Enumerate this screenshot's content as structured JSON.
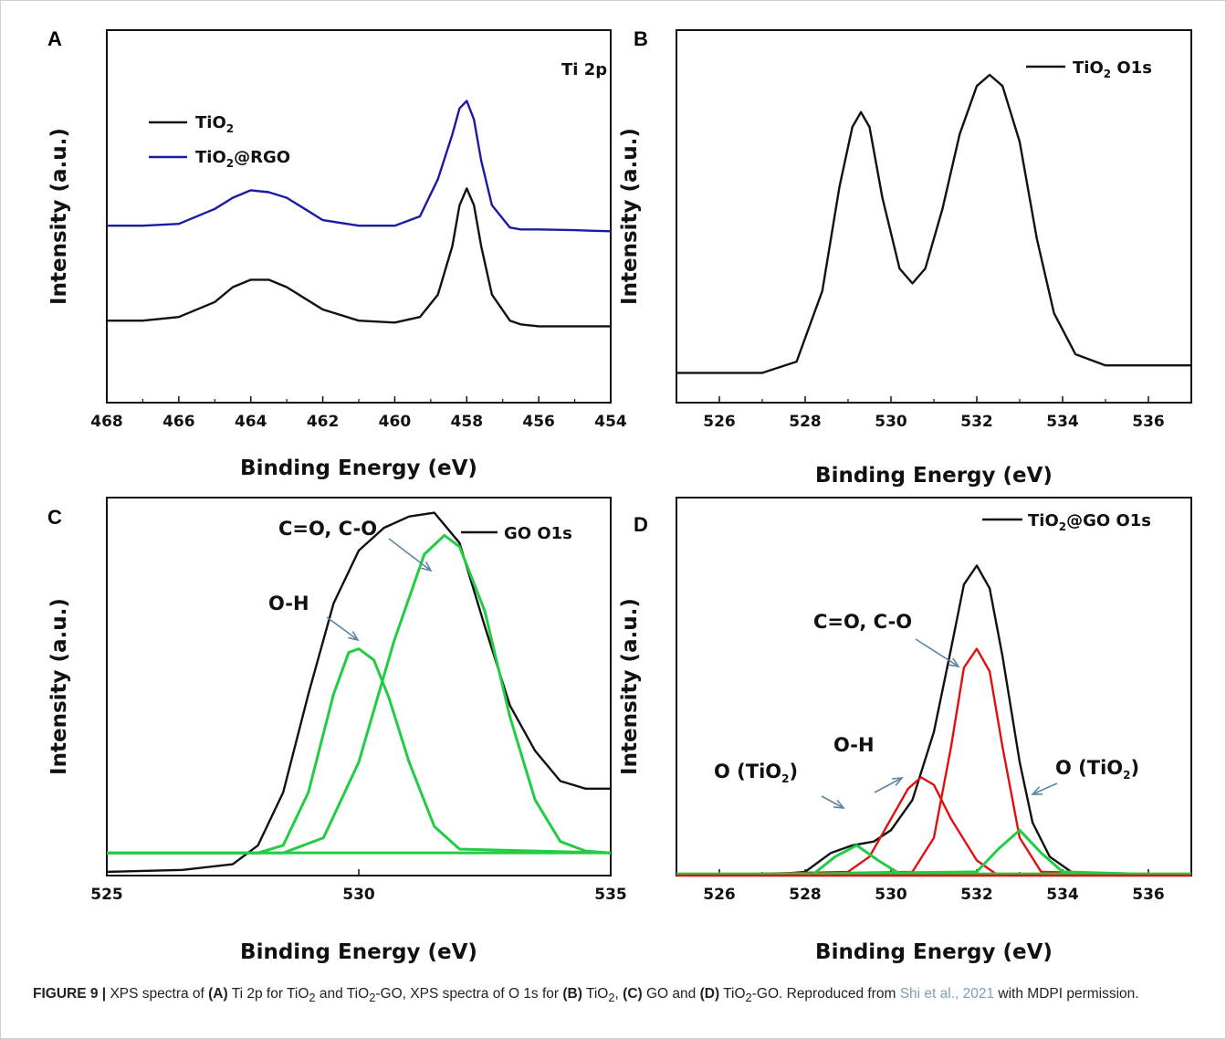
{
  "figure": {
    "caption": {
      "label": "FIGURE 9 |",
      "t1": " XPS spectra of ",
      "a": "(A)",
      "t2": " Ti 2p for TiO",
      "sub": "2",
      "t3": " and TiO",
      "t4": "-GO, XPS spectra of O 1s for ",
      "b": "(B)",
      "t5": " TiO",
      "t6": ", ",
      "c": "(C)",
      "t7": " GO and ",
      "d": "(D)",
      "t8": " TiO",
      "t9": "-GO. Reproduced from ",
      "cite": "Shi et al., 2021",
      "t10": " with MDPI permission."
    }
  },
  "chart_data": [
    {
      "id": "A",
      "type": "line",
      "panel_label": "A",
      "xlabel": "Binding Energy (eV)",
      "ylabel": "Intensity (a.u.)",
      "xlim": [
        468,
        454
      ],
      "x_reversed": true,
      "xticks": [
        468,
        466,
        464,
        462,
        460,
        458,
        456,
        454
      ],
      "ylim": [
        0,
        1
      ],
      "annotation": "Ti 2p",
      "legend_position": "top-left",
      "series": [
        {
          "name": "TiO2",
          "name_main": "TiO",
          "name_sub": "2",
          "name_rest": "",
          "color": "#111111",
          "x": [
            468,
            467,
            466,
            465,
            464.5,
            464,
            463.5,
            463,
            462.5,
            462,
            461,
            460,
            459.3,
            458.8,
            458.4,
            458.2,
            458,
            457.8,
            457.6,
            457.3,
            456.8,
            456.5,
            456,
            455,
            454
          ],
          "y": [
            0.22,
            0.22,
            0.23,
            0.27,
            0.31,
            0.33,
            0.33,
            0.31,
            0.28,
            0.25,
            0.22,
            0.215,
            0.23,
            0.29,
            0.42,
            0.53,
            0.575,
            0.53,
            0.42,
            0.29,
            0.22,
            0.21,
            0.205,
            0.205,
            0.205
          ]
        },
        {
          "name": "TiO2@RGO",
          "name_main": "TiO",
          "name_sub": "2",
          "name_rest": "@RGO",
          "color": "#1a1aa6",
          "x": [
            468,
            467,
            466,
            465,
            464.5,
            464,
            463.5,
            463,
            462.5,
            462,
            461,
            460,
            459.3,
            458.8,
            458.4,
            458.2,
            458,
            457.8,
            457.6,
            457.3,
            456.8,
            456.5,
            456,
            455,
            454
          ],
          "y": [
            0.475,
            0.475,
            0.48,
            0.52,
            0.55,
            0.57,
            0.565,
            0.55,
            0.52,
            0.49,
            0.475,
            0.475,
            0.5,
            0.6,
            0.72,
            0.79,
            0.81,
            0.76,
            0.65,
            0.53,
            0.47,
            0.465,
            0.465,
            0.463,
            0.46
          ]
        }
      ]
    },
    {
      "id": "B",
      "type": "line",
      "panel_label": "B",
      "xlabel": "Binding Energy (eV)",
      "ylabel": "Intensity (a.u.)",
      "xlim": [
        525,
        537
      ],
      "xticks": [
        526,
        528,
        530,
        532,
        534,
        536
      ],
      "ylim": [
        0,
        1
      ],
      "legend_position": "top-right",
      "series": [
        {
          "name": "TiO2 O1s",
          "name_main": "TiO",
          "name_sub": "2",
          "name_rest": "  O1s",
          "color": "#111111",
          "x": [
            525,
            526,
            527,
            527.8,
            528.4,
            528.8,
            529.1,
            529.3,
            529.5,
            529.8,
            530.2,
            530.5,
            530.8,
            531.2,
            531.6,
            532,
            532.3,
            532.6,
            533,
            533.4,
            533.8,
            534.3,
            535,
            536,
            537
          ],
          "y": [
            0.08,
            0.08,
            0.08,
            0.11,
            0.3,
            0.58,
            0.74,
            0.78,
            0.74,
            0.55,
            0.36,
            0.32,
            0.36,
            0.52,
            0.72,
            0.85,
            0.88,
            0.85,
            0.7,
            0.44,
            0.24,
            0.13,
            0.1,
            0.1,
            0.1
          ]
        }
      ]
    },
    {
      "id": "C",
      "type": "line",
      "panel_label": "C",
      "xlabel": "Binding Energy (eV)",
      "ylabel": "Intensity (a.u.)",
      "xlim": [
        525,
        535
      ],
      "xticks": [
        525,
        530,
        535
      ],
      "ylim": [
        0,
        1
      ],
      "legend_position": "top-right",
      "series": [
        {
          "name": "GO O1s",
          "name_main": "GO O1s",
          "name_sub": "",
          "name_rest": "",
          "color": "#111111",
          "x": [
            525,
            526.5,
            527.5,
            528,
            528.5,
            529,
            529.5,
            530,
            530.5,
            531,
            531.5,
            532,
            532.5,
            533,
            533.5,
            534,
            534.5,
            535
          ],
          "y": [
            0.01,
            0.015,
            0.03,
            0.08,
            0.22,
            0.48,
            0.72,
            0.86,
            0.92,
            0.95,
            0.96,
            0.88,
            0.66,
            0.45,
            0.33,
            0.25,
            0.23,
            0.23
          ]
        },
        {
          "name": "O-H component",
          "name_main": "",
          "name_sub": "",
          "name_rest": "",
          "color": "#22cc44",
          "x": [
            525,
            528,
            528.5,
            529,
            529.5,
            529.8,
            530,
            530.3,
            530.6,
            531,
            531.5,
            532,
            535
          ],
          "y": [
            0.06,
            0.06,
            0.08,
            0.22,
            0.48,
            0.59,
            0.6,
            0.57,
            0.47,
            0.3,
            0.13,
            0.07,
            0.06
          ]
        },
        {
          "name": "C=O, C-O component",
          "name_main": "",
          "name_sub": "",
          "name_rest": "",
          "color": "#22cc44",
          "x": [
            525,
            528.5,
            529.3,
            530,
            530.7,
            531.3,
            531.7,
            532,
            532.5,
            533,
            533.5,
            534,
            534.5,
            535
          ],
          "y": [
            0.06,
            0.06,
            0.1,
            0.3,
            0.62,
            0.85,
            0.9,
            0.87,
            0.7,
            0.42,
            0.2,
            0.09,
            0.065,
            0.06
          ]
        }
      ],
      "annotations": [
        {
          "text": "O-H",
          "points_to_x": 529.7
        },
        {
          "text": "C=O, C-O",
          "points_to_x": 531.0
        }
      ]
    },
    {
      "id": "D",
      "type": "line",
      "panel_label": "D",
      "xlabel": "Binding Energy (eV)",
      "ylabel": "Intensity (a.u.)",
      "xlim": [
        525,
        537
      ],
      "xticks": [
        526,
        528,
        530,
        532,
        534,
        536
      ],
      "ylim": [
        0,
        1
      ],
      "legend_position": "top-right",
      "series": [
        {
          "name": "TiO2@GO O1s",
          "name_main": "TiO",
          "name_sub": "2",
          "name_rest": "@GO O1s",
          "color": "#111111",
          "x": [
            525,
            527,
            528,
            528.6,
            529.1,
            529.6,
            530,
            530.5,
            531,
            531.4,
            531.7,
            532,
            532.3,
            532.6,
            533,
            533.3,
            533.7,
            534.2,
            535,
            537
          ],
          "y": [
            0.0,
            0.0,
            0.01,
            0.06,
            0.08,
            0.09,
            0.12,
            0.2,
            0.38,
            0.6,
            0.77,
            0.82,
            0.76,
            0.58,
            0.3,
            0.14,
            0.05,
            0.01,
            0.0,
            0.0
          ]
        },
        {
          "name": "C=O, C-O component",
          "name_main": "",
          "name_sub": "",
          "name_rest": "",
          "color": "#e01010",
          "x": [
            525,
            530.5,
            531,
            531.4,
            531.7,
            532,
            532.3,
            532.6,
            533,
            533.5,
            537
          ],
          "y": [
            0.0,
            0.01,
            0.1,
            0.34,
            0.55,
            0.6,
            0.54,
            0.34,
            0.1,
            0.01,
            0.0
          ]
        },
        {
          "name": "O-H component",
          "name_main": "",
          "name_sub": "",
          "name_rest": "",
          "color": "#e01010",
          "x": [
            525,
            529,
            529.5,
            530,
            530.4,
            530.7,
            531,
            531.4,
            532,
            532.5,
            537
          ],
          "y": [
            0.0,
            0.01,
            0.05,
            0.15,
            0.23,
            0.26,
            0.24,
            0.15,
            0.04,
            0.0,
            0.0
          ]
        },
        {
          "name": "O (TiO2) component low",
          "name_main": "",
          "name_sub": "",
          "name_rest": "",
          "color": "#22cc44",
          "x": [
            525,
            528.2,
            528.7,
            529.2,
            529.7,
            530.2,
            537
          ],
          "y": [
            0.0,
            0.005,
            0.05,
            0.08,
            0.04,
            0.005,
            0.0
          ]
        },
        {
          "name": "O (TiO2) component high",
          "name_main": "",
          "name_sub": "",
          "name_rest": "",
          "color": "#22cc44",
          "x": [
            525,
            532,
            532.5,
            533,
            533.5,
            534,
            537
          ],
          "y": [
            0.0,
            0.01,
            0.07,
            0.12,
            0.06,
            0.01,
            0.0
          ]
        }
      ],
      "annotations": [
        {
          "text": "O (TiO2)",
          "points_to_x": 529.2
        },
        {
          "text": "O-H",
          "points_to_x": 530.4
        },
        {
          "text": "C=O, C-O",
          "points_to_x": 531.6
        },
        {
          "text": "O (TiO2)",
          "points_to_x": 533.3
        }
      ]
    }
  ]
}
